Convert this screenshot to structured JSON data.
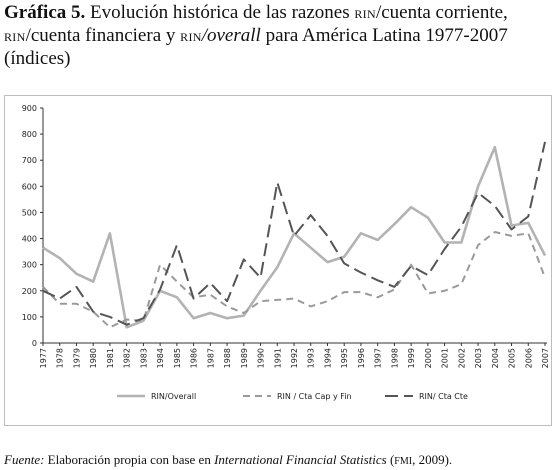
{
  "figure": {
    "label": "Gráfica 5.",
    "title_p1": " Evolución histórica de las razones ",
    "sc1": "RIN",
    "title_p2": "/cuenta corriente,",
    "sc2": "RIN",
    "title_p3": "/cuenta financiera y ",
    "sc3": "RIN",
    "title_overall": "/overall",
    "title_p4": " para América Latina 1977-2007",
    "title_line3": "(índices)"
  },
  "source": {
    "label": "Fuente:",
    "text1": " Elaboración propia con base en ",
    "publication": "International Financial Statistics",
    "text2": " (",
    "org": "FMI",
    "text3": ", 2009)."
  },
  "chart_data": {
    "type": "line",
    "x": [
      "1977",
      "1978",
      "1979",
      "1980",
      "1981",
      "1982",
      "1983",
      "1984",
      "1985",
      "1986",
      "1987",
      "1988",
      "1989",
      "1990",
      "1991",
      "1992",
      "1993",
      "1994",
      "1995",
      "1996",
      "1997",
      "1998",
      "1999",
      "2000",
      "2001",
      "2002",
      "2003",
      "2004",
      "2005",
      "2006",
      "2007"
    ],
    "ylim": [
      0,
      900
    ],
    "yticks": [
      0,
      100,
      200,
      300,
      400,
      500,
      600,
      700,
      800,
      900
    ],
    "grid": false,
    "legend_position": "bottom",
    "series": [
      {
        "name": "RIN/Overall",
        "style": "solid",
        "color": "#b3b3b3",
        "values": [
          365,
          325,
          265,
          235,
          420,
          60,
          85,
          200,
          175,
          95,
          115,
          95,
          105,
          200,
          290,
          420,
          365,
          310,
          330,
          420,
          395,
          455,
          520,
          480,
          385,
          385,
          600,
          750,
          450,
          460,
          335
        ]
      },
      {
        "name": "RIN / Cta Cap y Fin",
        "style": "dashed",
        "color": "#9a9a9a",
        "values": [
          215,
          150,
          150,
          120,
          60,
          90,
          85,
          300,
          235,
          175,
          185,
          140,
          115,
          160,
          165,
          170,
          140,
          160,
          195,
          195,
          175,
          205,
          300,
          190,
          200,
          225,
          375,
          425,
          410,
          420,
          250
        ]
      },
      {
        "name": "RIN/ Cta Cte",
        "style": "longdash",
        "color": "#555555",
        "values": [
          200,
          170,
          215,
          120,
          100,
          70,
          95,
          205,
          375,
          170,
          230,
          160,
          320,
          250,
          615,
          410,
          490,
          410,
          305,
          270,
          240,
          215,
          295,
          260,
          360,
          445,
          575,
          525,
          435,
          485,
          770
        ]
      }
    ]
  }
}
